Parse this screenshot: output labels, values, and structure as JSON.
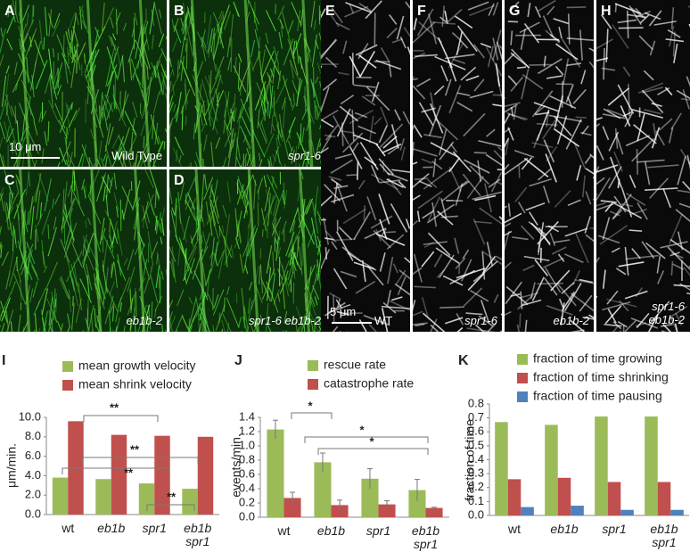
{
  "panels": [
    {
      "letter": "A",
      "caption": "Wild Type",
      "scale_bar": "10 μm"
    },
    {
      "letter": "B",
      "caption": "spr1-6"
    },
    {
      "letter": "C",
      "caption": "eb1b-2"
    },
    {
      "letter": "D",
      "caption": "spr1-6 eb1b-2"
    },
    {
      "letter": "E",
      "caption": "WT",
      "scale_bar": "5 μm"
    },
    {
      "letter": "F",
      "caption": "spr1-6"
    },
    {
      "letter": "G",
      "caption": "eb1b-2"
    },
    {
      "letter": "H",
      "caption": "spr1-6\neb1b-2"
    }
  ],
  "chart_data": [
    {
      "type": "bar",
      "label": "I",
      "ylabel": "μm/min.",
      "categories": [
        "wt",
        "eb1b",
        "spr1",
        "eb1b\nspr1"
      ],
      "series": [
        {
          "name": "mean growth velocity",
          "color": "#9bbb59",
          "values": [
            3.8,
            3.65,
            3.2,
            2.65
          ]
        },
        {
          "name": "mean shrink velocity",
          "color": "#c0504d",
          "values": [
            9.6,
            8.2,
            8.1,
            8.0
          ]
        }
      ],
      "ylim": [
        0,
        10
      ],
      "yticks": [
        {
          "value": 0,
          "label": "0.0"
        },
        {
          "value": 2,
          "label": "2.0"
        },
        {
          "value": 4,
          "label": "4.0"
        },
        {
          "value": 6,
          "label": "6.0"
        },
        {
          "value": 8,
          "label": "8.0"
        },
        {
          "value": 10,
          "label": "10.0"
        }
      ],
      "annotations": [
        "**",
        "**",
        "**",
        "**"
      ]
    },
    {
      "type": "bar",
      "label": "J",
      "ylabel": "events/min.",
      "categories": [
        "wt",
        "eb1b",
        "spr1",
        "eb1b\nspr1"
      ],
      "series": [
        {
          "name": "rescue rate",
          "color": "#9bbb59",
          "values": [
            1.23,
            0.77,
            0.54,
            0.38
          ],
          "errors": [
            0.13,
            0.13,
            0.14,
            0.15
          ]
        },
        {
          "name": "catastrophe rate",
          "color": "#c0504d",
          "values": [
            0.27,
            0.17,
            0.18,
            0.13
          ],
          "errors": [
            0.08,
            0.07,
            0.05,
            0.01
          ]
        }
      ],
      "ylim": [
        0,
        1.4
      ],
      "yticks": [
        {
          "value": 0,
          "label": "0.0"
        },
        {
          "value": 0.2,
          "label": "0.2"
        },
        {
          "value": 0.4,
          "label": "0.4"
        },
        {
          "value": 0.6,
          "label": "0.6"
        },
        {
          "value": 0.8,
          "label": "0.8"
        },
        {
          "value": 1,
          "label": "1.0"
        },
        {
          "value": 1.2,
          "label": "1.2"
        },
        {
          "value": 1.4,
          "label": "1.4"
        }
      ],
      "annotations": [
        "*",
        "*",
        "*"
      ]
    },
    {
      "type": "bar",
      "label": "K",
      "ylabel": "fraction of time",
      "categories": [
        "wt",
        "eb1b",
        "spr1",
        "eb1b\nspr1"
      ],
      "series": [
        {
          "name": "fraction of time growing",
          "color": "#9bbb59",
          "values": [
            0.67,
            0.65,
            0.71,
            0.71
          ]
        },
        {
          "name": "fraction of time shrinking",
          "color": "#c0504d",
          "values": [
            0.26,
            0.27,
            0.24,
            0.24
          ]
        },
        {
          "name": "fraction of time pausing",
          "color": "#4f81bd",
          "values": [
            0.06,
            0.07,
            0.04,
            0.04
          ]
        }
      ],
      "ylim": [
        0,
        0.8
      ],
      "yticks": [
        {
          "value": 0,
          "label": "0.0"
        },
        {
          "value": 0.1,
          "label": "0.1"
        },
        {
          "value": 0.2,
          "label": "0.2"
        },
        {
          "value": 0.3,
          "label": "0.3"
        },
        {
          "value": 0.4,
          "label": "0.4"
        },
        {
          "value": 0.5,
          "label": "0.5"
        },
        {
          "value": 0.6,
          "label": "0.6"
        },
        {
          "value": 0.7,
          "label": "0.7"
        },
        {
          "value": 0.8,
          "label": "0.8"
        }
      ]
    }
  ]
}
